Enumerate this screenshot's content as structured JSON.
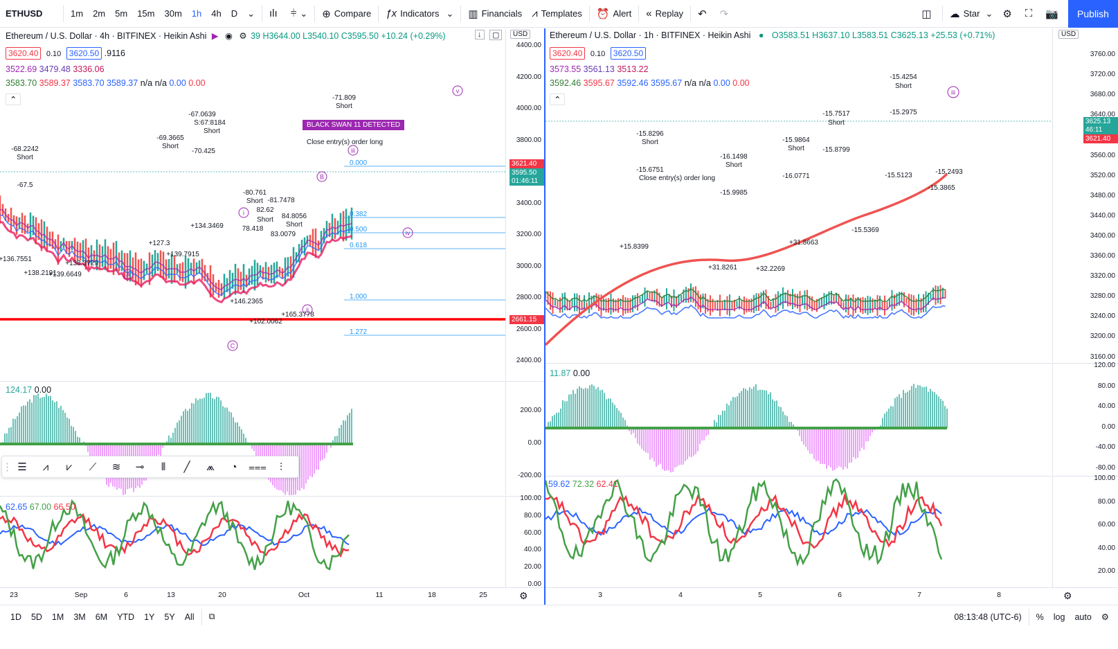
{
  "toolbar": {
    "symbol": "ETHUSD",
    "intervals": [
      "1m",
      "2m",
      "5m",
      "15m",
      "30m",
      "1h",
      "4h",
      "D"
    ],
    "active_interval": "1h",
    "compare": "Compare",
    "indicators": "Indicators",
    "financials": "Financials",
    "templates": "Templates",
    "alert": "Alert",
    "replay": "Replay",
    "star": "Star",
    "publish": "Publish"
  },
  "left_chart": {
    "title": "Ethereum / U.S. Dollar · 4h · BITFINEX · Heikin Ashi",
    "ohlc": "39 H3644.00 L3540.10 C3595.50 +10.24 (+0.29%)",
    "sell_price": "3620.40",
    "spread": "0.10",
    "buy_price": "3620.50",
    "line2_extra": ".9116",
    "line3": [
      "3522.69",
      "3479.48",
      "3336.06"
    ],
    "line4": [
      "3583.70",
      "3589.37",
      "3583.70",
      "3589.37",
      "n/a",
      "n/a",
      "0.00",
      "0.00"
    ],
    "currency": "USD",
    "y_ticks": [
      "4400.00",
      "4200.00",
      "4000.00",
      "3800.00",
      "3600.00",
      "3400.00",
      "3200.00",
      "3000.00",
      "2800.00",
      "2600.00",
      "2400.00"
    ],
    "price_badges": {
      "red_line": "3621.40",
      "last": "3595.50",
      "timer": "01:46:11",
      "support": "2661.15"
    },
    "fib_levels": [
      {
        "label": "0.000"
      },
      {
        "label": "0.382"
      },
      {
        "label": "0.500"
      },
      {
        "label": "0.618"
      },
      {
        "label": "1.000"
      },
      {
        "label": "1.272"
      }
    ],
    "black_swan": "BLACK SWAN 11 DETECTED",
    "waves": [
      "v",
      "iv",
      "i",
      "ii",
      "iii",
      "A",
      "B",
      "C"
    ],
    "annotations": [
      "-71.809",
      "Short",
      "-67.0639",
      "S:67:8184",
      "Short",
      "-69.3665",
      "Short",
      "-70.425",
      "-68.2242",
      "Short",
      "-67.5",
      "-80.761",
      "Short",
      "-81.7478",
      "82.62",
      "Short",
      "84.8056",
      "Short",
      "83.0079",
      "78.418",
      "Close entry(s) order long",
      "+136.7551",
      "+138.2191",
      "+139.6649",
      "+138.3729",
      "+127.3",
      "+139.7915",
      "+134.3469",
      "+146.2365",
      "+102.0062",
      "+165.3778"
    ],
    "x_ticks": [
      "23",
      "Sep",
      "6",
      "13",
      "20",
      "Oct",
      "11",
      "18",
      "25"
    ],
    "macd": {
      "values": [
        "124.17",
        "0.00"
      ],
      "y_ticks": [
        "200.00",
        "0.00",
        "-200.00"
      ]
    },
    "rsi": {
      "values": [
        "62.65",
        "67.00",
        "66.50"
      ],
      "y_ticks": [
        "100.00",
        "80.00",
        "60.00",
        "40.00",
        "20.00",
        "0.00"
      ]
    }
  },
  "right_chart": {
    "title": "Ethereum / U.S. Dollar · 1h · BITFINEX · Heikin Ashi",
    "ohlc": "O3583.51 H3637.10 L3583.51 C3625.13 +25.53 (+0.71%)",
    "sell_price": "3620.40",
    "spread": "0.10",
    "buy_price": "3620.50",
    "line3": [
      "3573.55",
      "3561.13",
      "3513.22"
    ],
    "line4": [
      "3592.46",
      "3595.67",
      "3592.46",
      "3595.67",
      "n/a",
      "n/a",
      "0.00",
      "0.00"
    ],
    "currency": "USD",
    "y_ticks": [
      "3760.00",
      "3720.00",
      "3680.00",
      "3640.00",
      "3600.00",
      "3560.00",
      "3520.00",
      "3480.00",
      "3440.00",
      "3400.00",
      "3360.00",
      "3320.00",
      "3280.00",
      "3240.00",
      "3200.00",
      "3160.00"
    ],
    "price_badges": {
      "last": "3625.13",
      "timer": "46:11",
      "red_line": "3621.40"
    },
    "annotations": [
      "-15.4254",
      "Short",
      "-15.2975",
      "-15.7517",
      "Short",
      "-15.8296",
      "Short",
      "-15.6751",
      "-16.1498",
      "Short",
      "-15.9985",
      "-15.9864",
      "Short",
      "-15.8799",
      "-16.0771",
      "-15.5123",
      "-15.3865",
      "-15.2493",
      "+15.8399",
      "+31.8261",
      "+32.2269",
      "+31.8663",
      "-15.5369",
      "Close entry(s) order long"
    ],
    "x_ticks": [
      "3",
      "4",
      "5",
      "6",
      "7",
      "8"
    ],
    "macd": {
      "values": [
        "11.87",
        "0.00"
      ],
      "y_ticks": [
        "120.00",
        "80.00",
        "40.00",
        "0.00",
        "-40.00",
        "-80.00"
      ]
    },
    "rsi": {
      "values": [
        "59.62",
        "72.32",
        "62.41"
      ],
      "y_ticks": [
        "100.00",
        "80.00",
        "60.00",
        "40.00",
        "20.00"
      ]
    }
  },
  "bottom_bar": {
    "ranges": [
      "1D",
      "5D",
      "1M",
      "3M",
      "6M",
      "YTD",
      "1Y",
      "5Y",
      "All"
    ],
    "clock": "08:13:48 (UTC-6)",
    "percent": "%",
    "log": "log",
    "auto": "auto"
  },
  "colors": {
    "accent": "#2962ff",
    "red": "#ff0000",
    "green": "#26a69a",
    "purple": "#9c27b0"
  }
}
